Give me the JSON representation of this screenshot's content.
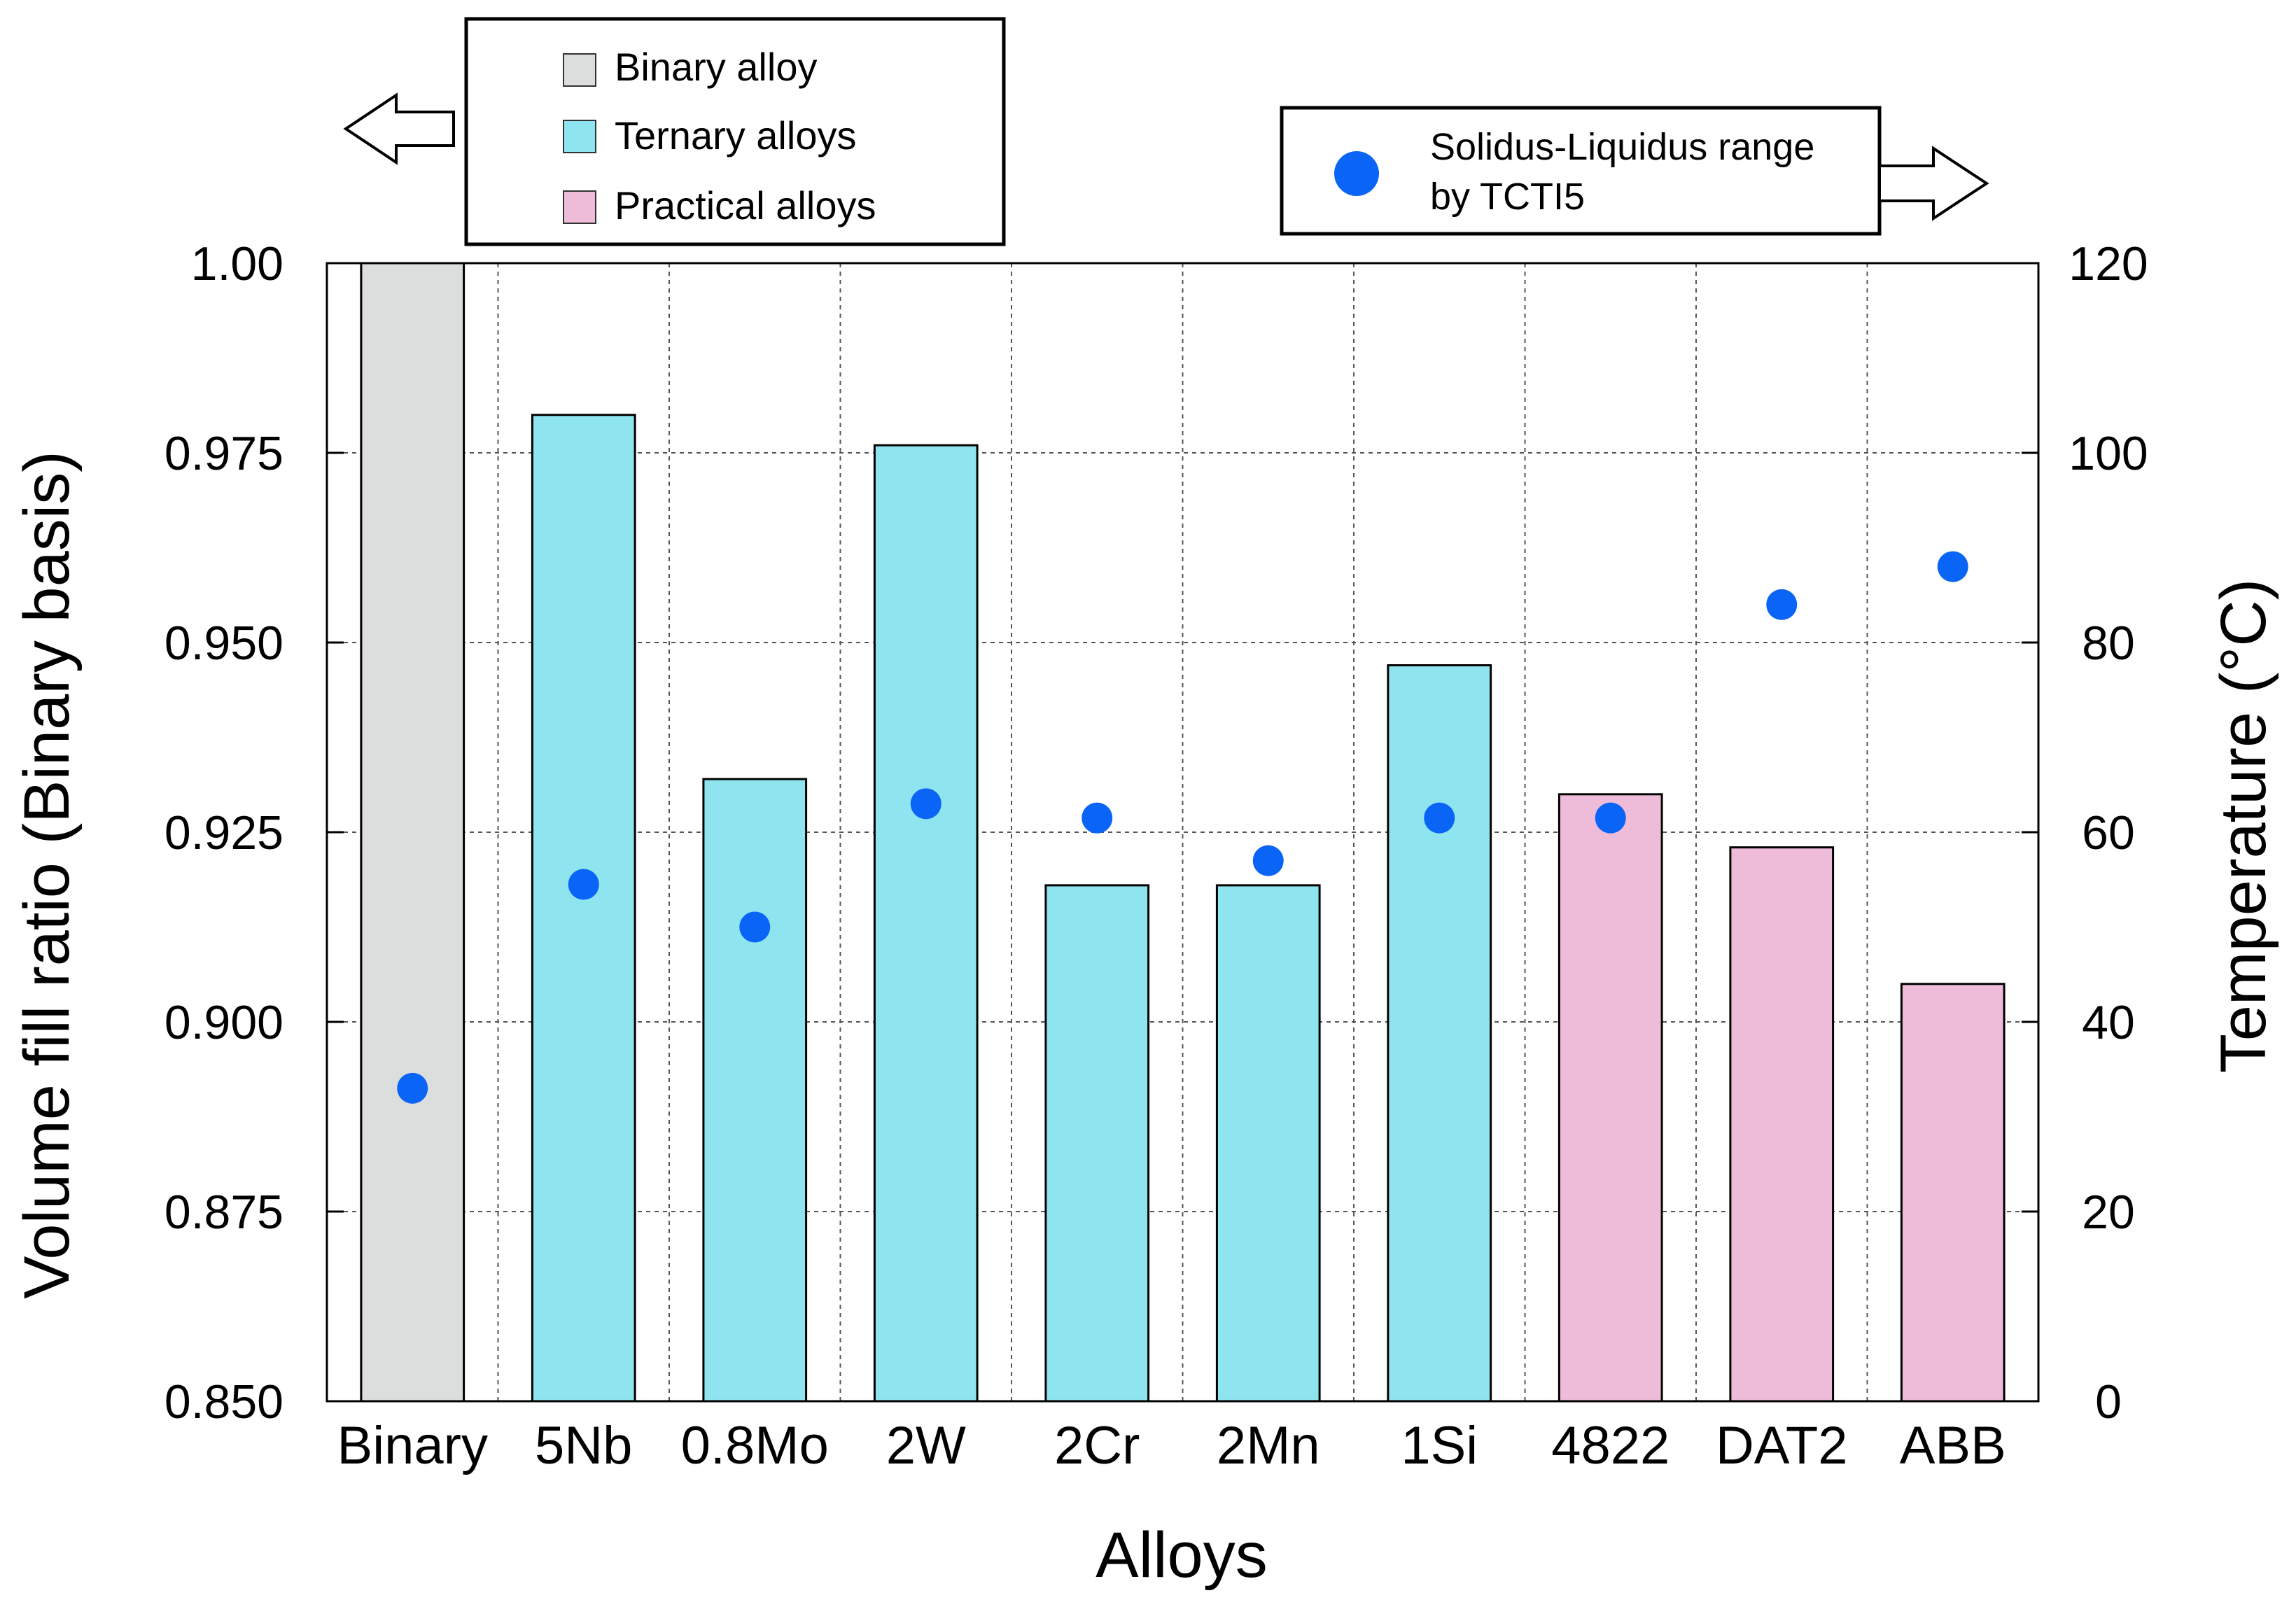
{
  "chart_data": {
    "type": "bar",
    "xlabel": "Alloys",
    "ylabel_left": "Volume fill ratio (Binary basis)",
    "ylabel_right": "Temperature (°C)",
    "categories": [
      "Binary",
      "5Nb",
      "0.8Mo",
      "2W",
      "2Cr",
      "2Mn",
      "1Si",
      "4822",
      "DAT2",
      "ABB"
    ],
    "bar_values": [
      1.0,
      0.98,
      0.932,
      0.976,
      0.918,
      0.918,
      0.947,
      0.93,
      0.923,
      0.905
    ],
    "bar_groups": [
      "Binary alloy",
      "Ternary alloys",
      "Ternary alloys",
      "Ternary alloys",
      "Ternary alloys",
      "Ternary alloys",
      "Ternary alloys",
      "Practical alloys",
      "Practical alloys",
      "Practical alloys"
    ],
    "scatter_name": "Solidus-Liquidus range by TCTI5",
    "scatter_values": [
      33,
      54.5,
      50,
      63,
      61.5,
      57,
      61.5,
      61.5,
      84,
      88
    ],
    "ylim_left": [
      0.85,
      1.0
    ],
    "yticks_left": [
      "0.850",
      "0.875",
      "0.900",
      "0.925",
      "0.950",
      "0.975",
      "1.00"
    ],
    "ylim_right": [
      0,
      120
    ],
    "yticks_right": [
      "0",
      "20",
      "40",
      "60",
      "80",
      "100",
      "120"
    ],
    "grid": "dotted",
    "colors": {
      "Binary alloy": "#dcdddd",
      "Ternary alloys": "#8fe5ef",
      "Practical alloys": "#eebbd8",
      "scatter": "#0a64f5"
    },
    "legend_bars": {
      "placement": "top-center",
      "entries": [
        "Binary alloy",
        "Ternary alloys",
        "Practical alloys"
      ]
    },
    "legend_scatter": {
      "placement": "top-right",
      "line1": "Solidus-Liquidus range",
      "line2": "by TCTI5"
    }
  }
}
